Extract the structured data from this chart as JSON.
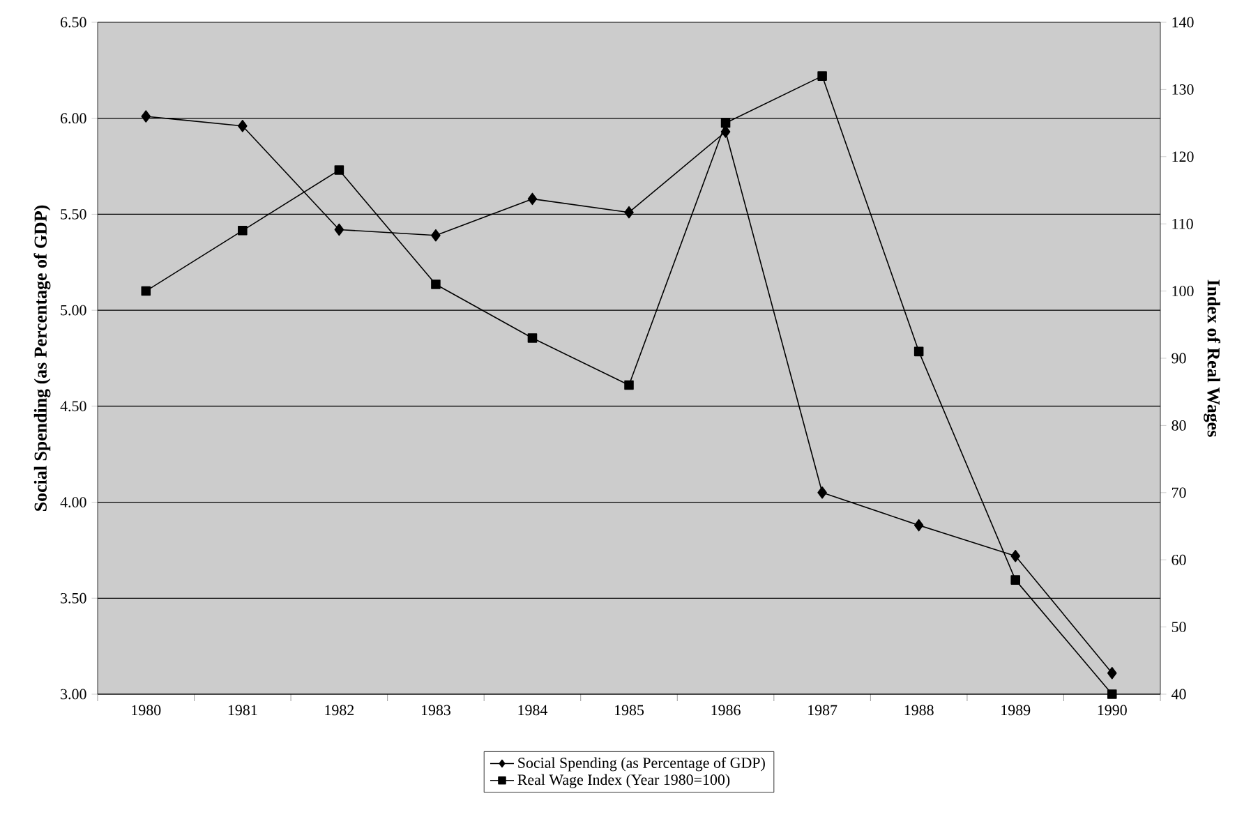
{
  "chart_data": {
    "type": "line",
    "ylabel": "Social Spending (as Percentage of GDP)",
    "y2label": "Index of Real Wages",
    "categories": [
      "1980",
      "1981",
      "1982",
      "1983",
      "1984",
      "1985",
      "1986",
      "1987",
      "1988",
      "1989",
      "1990"
    ],
    "series": [
      {
        "name": "Social Spending (as Percentage of GDP)",
        "color": "#000000",
        "marker": "diamond",
        "values": [
          6.01,
          5.96,
          5.42,
          5.39,
          5.58,
          5.51,
          5.93,
          4.05,
          3.88,
          3.72,
          3.11
        ]
      },
      {
        "name": "Real Wage Index (Year 1980=100)",
        "color": "#000000",
        "marker": "square",
        "axis": "y2",
        "values": [
          100,
          109,
          118,
          101,
          93,
          86,
          125,
          132,
          91,
          57,
          40
        ]
      }
    ],
    "ylim": [
      3.0,
      6.5
    ],
    "yticks": [
      {
        "value": 3.0,
        "label": "3.00"
      },
      {
        "value": 3.5,
        "label": "3.50"
      },
      {
        "value": 4.0,
        "label": "4.00"
      },
      {
        "value": 4.5,
        "label": "4.50"
      },
      {
        "value": 5.0,
        "label": "5.00"
      },
      {
        "value": 5.5,
        "label": "5.50"
      },
      {
        "value": 6.0,
        "label": "6.00"
      },
      {
        "value": 6.5,
        "label": "6.50"
      }
    ],
    "y2lim": [
      40,
      140
    ],
    "y2ticks": [
      40,
      50,
      60,
      70,
      80,
      90,
      100,
      110,
      120,
      130,
      140
    ],
    "grid": "y",
    "legend": "bottom",
    "line_style": "solid"
  }
}
